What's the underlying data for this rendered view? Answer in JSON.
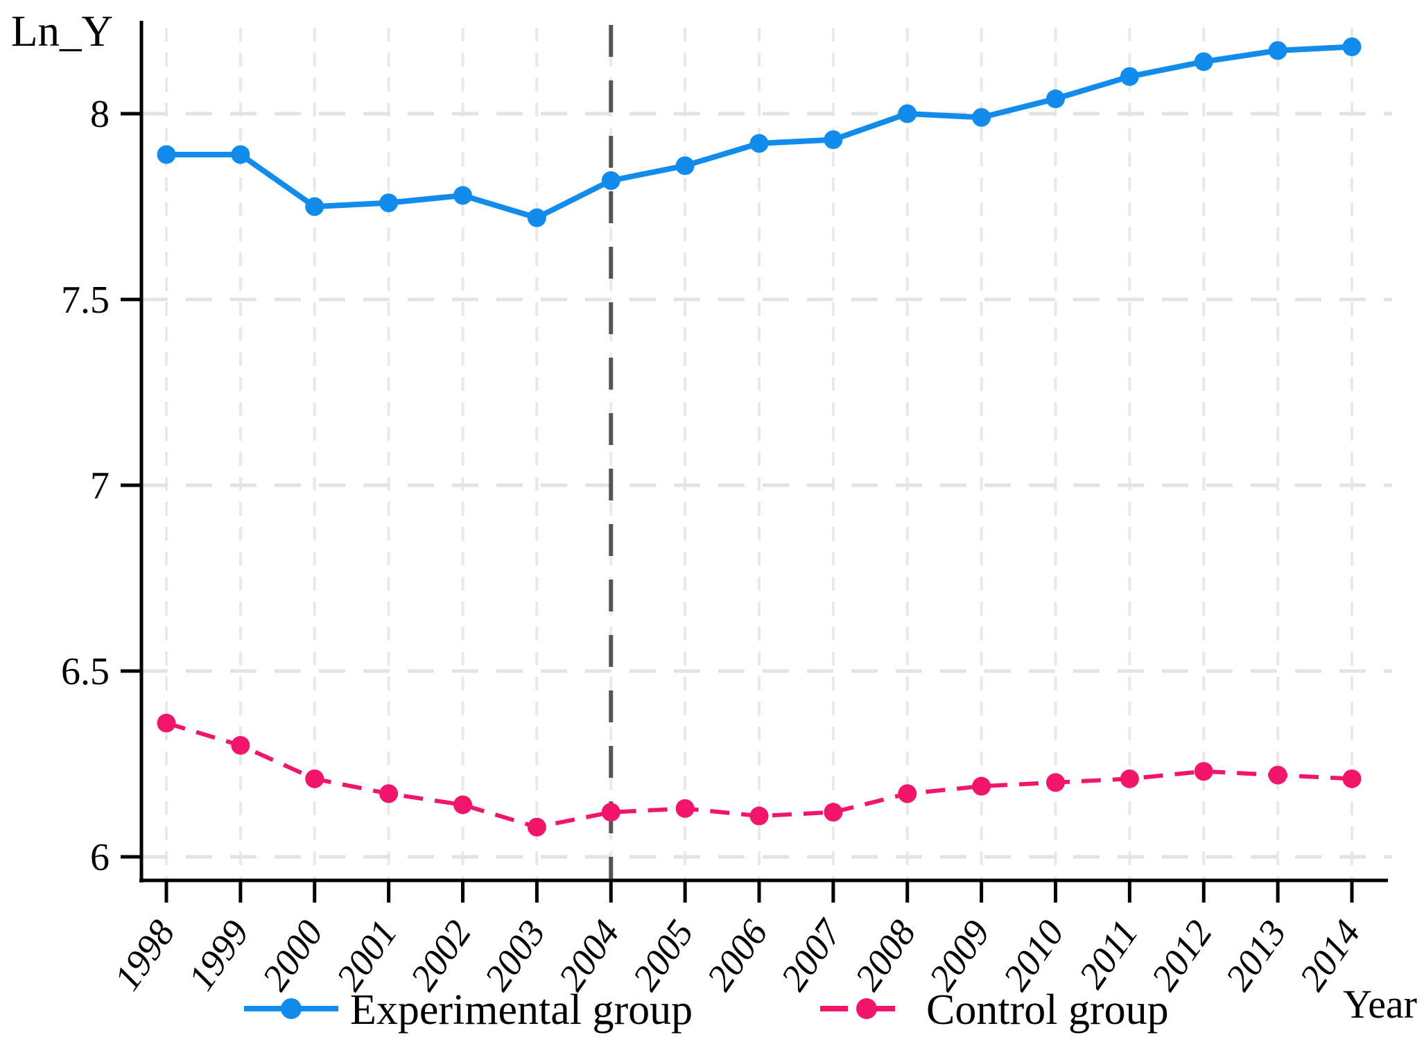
{
  "chart_data": {
    "type": "line",
    "title": "",
    "xlabel": "Year",
    "ylabel": "Ln_Y",
    "x": [
      1998,
      1999,
      2000,
      2001,
      2002,
      2003,
      2004,
      2005,
      2006,
      2007,
      2008,
      2009,
      2010,
      2011,
      2012,
      2013,
      2014
    ],
    "x_tick_labels": [
      "1998",
      "1999",
      "2000",
      "2001",
      "2002",
      "2003",
      "2004",
      "2005",
      "2006",
      "2007",
      "2008",
      "2009",
      "2010",
      "2011",
      "2012",
      "2013",
      "2014"
    ],
    "yticks": [
      6,
      6.5,
      7,
      7.5,
      8
    ],
    "ytick_labels": [
      "6",
      "6.5",
      "7",
      "7.5",
      "8"
    ],
    "ylim": [
      5.94,
      8.25
    ],
    "grid": "dashed horizontal and vertical gridlines",
    "legend_position": "bottom-center",
    "series": [
      {
        "name": "Experimental group",
        "line_style": "solid",
        "marker": "circle",
        "values": [
          7.89,
          7.89,
          7.75,
          7.76,
          7.78,
          7.72,
          7.82,
          7.86,
          7.92,
          7.93,
          8.0,
          7.99,
          8.04,
          8.1,
          8.14,
          8.17,
          8.18
        ]
      },
      {
        "name": "Control group",
        "line_style": "dashed",
        "marker": "circle",
        "values": [
          6.36,
          6.3,
          6.21,
          6.17,
          6.14,
          6.08,
          6.12,
          6.13,
          6.11,
          6.12,
          6.17,
          6.19,
          6.2,
          6.21,
          6.23,
          6.22,
          6.21
        ]
      }
    ],
    "annotations": {
      "treatment_vline_x": 2004
    }
  },
  "labels": {
    "y_axis_title": "Ln_Y",
    "x_axis_title": "Year"
  },
  "legend": {
    "items": [
      {
        "label": "Experimental group",
        "swatch": "solid-line-with-dot"
      },
      {
        "label": "Control group",
        "swatch": "dashed-line-with-dot"
      }
    ]
  },
  "colors": {
    "experimental": "#118bec",
    "control": "#f1156b",
    "treatment_line": "#555555",
    "grid_horizontal": "#e3e3e3",
    "grid_vertical": "#e9e9e9",
    "axis": "#000000",
    "background": "#ffffff"
  }
}
